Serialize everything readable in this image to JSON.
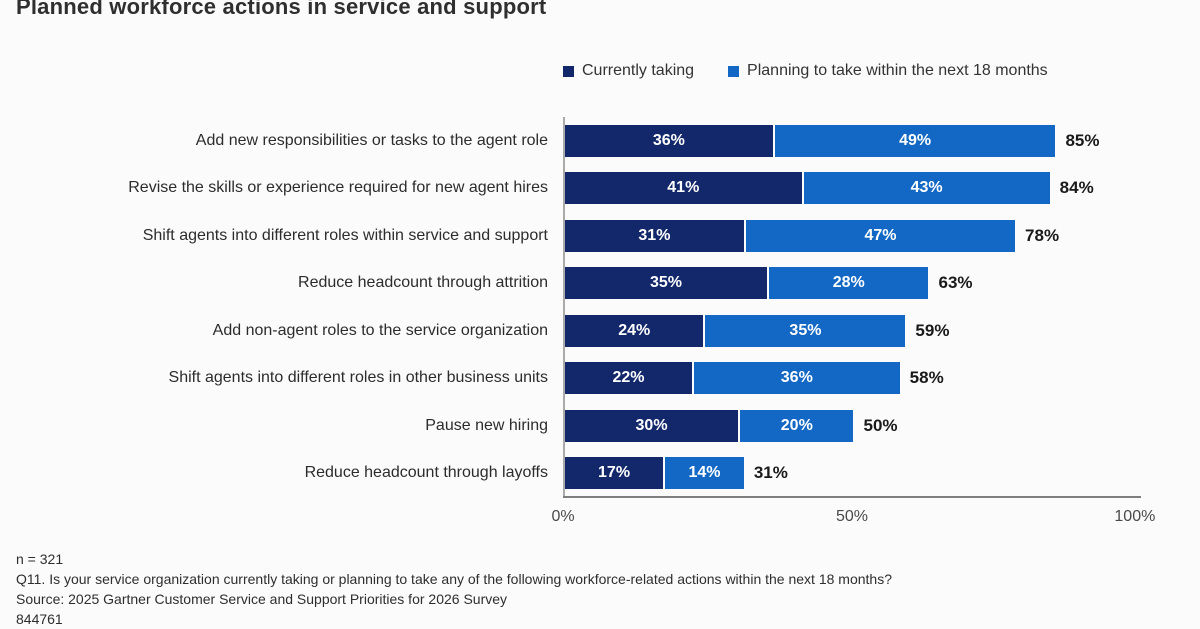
{
  "title": "Planned workforce actions in service and support",
  "legend": [
    {
      "label": "Currently taking",
      "color": "#13286b"
    },
    {
      "label": "Planning to take within the next 18 months",
      "color": "#1268c4"
    }
  ],
  "chart_data": {
    "type": "bar",
    "orientation": "horizontal",
    "stacked": true,
    "title": "Planned workforce actions in service and support",
    "categories": [
      "Add new responsibilities or tasks to the agent role",
      "Revise the skills or experience required for new agent hires",
      "Shift agents into different roles within service and support",
      "Reduce headcount through attrition",
      "Add non-agent roles to the service organization",
      "Shift agents into different roles in other business units",
      "Pause new hiring",
      "Reduce headcount through layoffs"
    ],
    "series": [
      {
        "name": "Currently taking",
        "color": "#13286b",
        "values": [
          36,
          41,
          31,
          35,
          24,
          22,
          30,
          17
        ]
      },
      {
        "name": "Planning to take within the next 18 months",
        "color": "#1268c4",
        "values": [
          49,
          43,
          47,
          28,
          35,
          36,
          20,
          14
        ]
      }
    ],
    "totals": [
      85,
      84,
      78,
      63,
      59,
      58,
      50,
      31
    ],
    "value_suffix": "%",
    "xlim": [
      0,
      100
    ],
    "x_ticks": [
      "0%",
      "50%",
      "100%"
    ],
    "grid": false,
    "legend_position": "top"
  },
  "footer": {
    "n": "n = 321",
    "question": "Q11. Is your service organization currently taking or planning to take any of the following workforce-related actions within the next 18 months?",
    "source": "Source: 2025 Gartner Customer Service and Support Priorities for 2026 Survey",
    "id": "844761"
  }
}
